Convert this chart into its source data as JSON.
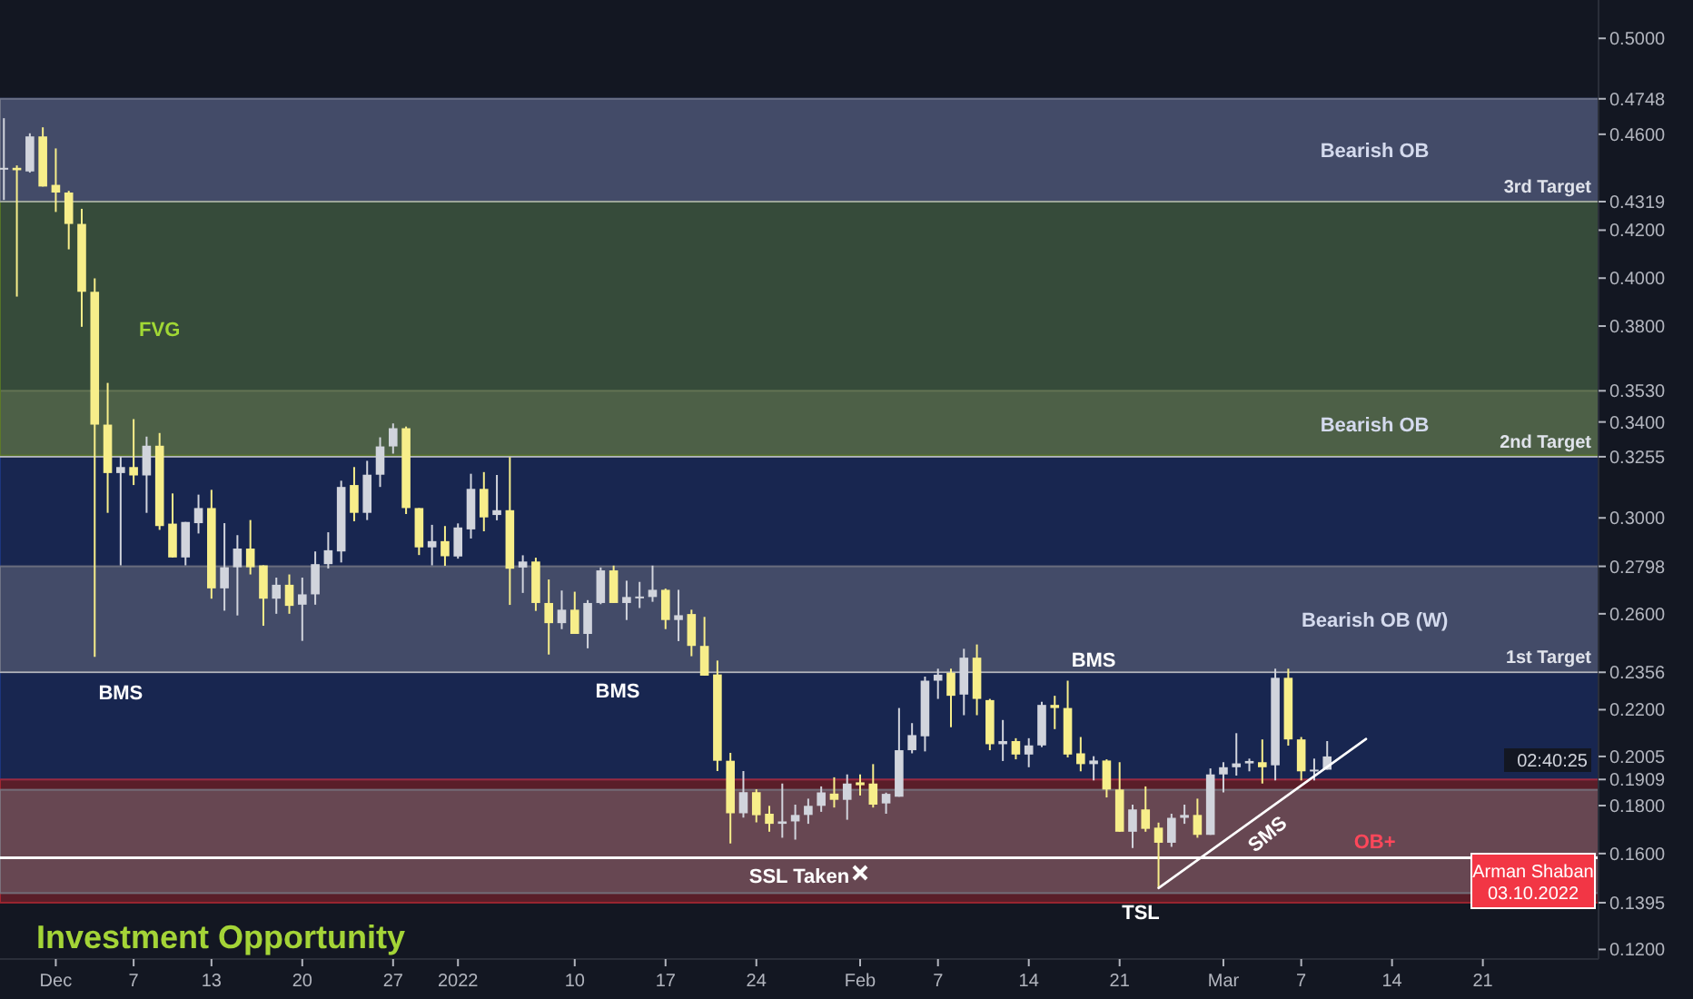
{
  "chart_data": {
    "type": "candlestick",
    "subtitle": "Investment Opportunity",
    "colors": [
      "#d1d4dc",
      "#f7ee8a",
      "#d1d4dc",
      "#f7ee8a",
      "#f7ee8a",
      "#f7ee8a",
      "#f7ee8a",
      "#f7ee8a",
      "#f7ee8a",
      "#d1d4dc",
      "#f7ee8a",
      "#d1d4dc",
      "#f7ee8a",
      "#f7ee8a",
      "#d1d4dc",
      "#d1d4dc",
      "#f7ee8a",
      "#d1d4dc",
      "#d1d4dc",
      "#f7ee8a",
      "#f7ee8a",
      "#d1d4dc",
      "#f7ee8a",
      "#d1d4dc",
      "#d1d4dc",
      "#d1d4dc",
      "#d1d4dc",
      "#f7ee8a",
      "#d1d4dc",
      "#d1d4dc",
      "#d1d4dc",
      "#f7ee8a",
      "#f7ee8a",
      "#d1d4dc",
      "#f7ee8a",
      "#d1d4dc",
      "#d1d4dc",
      "#f7ee8a",
      "#d1d4dc",
      "#f7ee8a",
      "#d1d4dc",
      "#f7ee8a",
      "#f7ee8a",
      "#d1d4dc",
      "#f7ee8a",
      "#d1d4dc",
      "#d1d4dc",
      "#f7ee8a",
      "#d1d4dc",
      "#d1d4dc",
      "#d1d4dc",
      "#f7ee8a",
      "#d1d4dc",
      "#f7ee8a",
      "#f7ee8a",
      "#f7ee8a",
      "#f7ee8a",
      "#d1d4dc",
      "#f7ee8a",
      "#f7ee8a",
      "#d1d4dc",
      "#d1d4dc",
      "#d1d4dc",
      "#d1d4dc",
      "#f7ee8a",
      "#d1d4dc",
      "#f7ee8a",
      "#f7ee8a",
      "#d1d4dc",
      "#d1d4dc",
      "#d1d4dc",
      "#d1d4dc",
      "#d1d4dc",
      "#f7ee8a",
      "#d1d4dc",
      "#f7ee8a",
      "#f7ee8a",
      "#d1d4dc",
      "#f7ee8a",
      "#d1d4dc",
      "#d1d4dc",
      "#f7ee8a",
      "#f7ee8a",
      "#f7ee8a",
      "#d1d4dc",
      "#f7ee8a",
      "#f7ee8a",
      "#d1d4dc",
      "#f7ee8a",
      "#f7ee8a",
      "#d1d4dc",
      "#d1d4dc",
      "#f7ee8a",
      "#d1d4dc",
      "#d1d4dc",
      "#d1d4dc",
      "#d1d4dc",
      "#f7ee8a",
      "#d1d4dc",
      "#f7ee8a",
      "#f7ee8a",
      "#d1d4dc",
      "#d1d4dc"
    ],
    "x": [
      "2021-11-27",
      "2021-11-28",
      "2021-11-29",
      "2021-11-30",
      "2021-12-01",
      "2021-12-02",
      "2021-12-03",
      "2021-12-04",
      "2021-12-05",
      "2021-12-06",
      "2021-12-07",
      "2021-12-08",
      "2021-12-09",
      "2021-12-10",
      "2021-12-11",
      "2021-12-12",
      "2021-12-13",
      "2021-12-14",
      "2021-12-15",
      "2021-12-16",
      "2021-12-17",
      "2021-12-18",
      "2021-12-19",
      "2021-12-20",
      "2021-12-21",
      "2021-12-22",
      "2021-12-23",
      "2021-12-24",
      "2021-12-25",
      "2021-12-26",
      "2021-12-27",
      "2021-12-28",
      "2021-12-29",
      "2021-12-30",
      "2021-12-31",
      "2022-01-01",
      "2022-01-02",
      "2022-01-03",
      "2022-01-04",
      "2022-01-05",
      "2022-01-06",
      "2022-01-07",
      "2022-01-08",
      "2022-01-09",
      "2022-01-10",
      "2022-01-11",
      "2022-01-12",
      "2022-01-13",
      "2022-01-14",
      "2022-01-15",
      "2022-01-16",
      "2022-01-17",
      "2022-01-18",
      "2022-01-19",
      "2022-01-20",
      "2022-01-21",
      "2022-01-22",
      "2022-01-23",
      "2022-01-24",
      "2022-01-25",
      "2022-01-26",
      "2022-01-27",
      "2022-01-28",
      "2022-01-29",
      "2022-01-30",
      "2022-01-31",
      "2022-02-01",
      "2022-02-02",
      "2022-02-03",
      "2022-02-04",
      "2022-02-05",
      "2022-02-06",
      "2022-02-07",
      "2022-02-08",
      "2022-02-09",
      "2022-02-10",
      "2022-02-11",
      "2022-02-12",
      "2022-02-13",
      "2022-02-14",
      "2022-02-15",
      "2022-02-16",
      "2022-02-17",
      "2022-02-18",
      "2022-02-19",
      "2022-02-20",
      "2022-02-21",
      "2022-02-22",
      "2022-02-23",
      "2022-02-24",
      "2022-02-25",
      "2022-02-26",
      "2022-02-27",
      "2022-02-28",
      "2022-03-01",
      "2022-03-02",
      "2022-03-03",
      "2022-03-04",
      "2022-03-05",
      "2022-03-06",
      "2022-03-07",
      "2022-03-08",
      "2022-03-09"
    ],
    "ohlc": [
      [
        0.4457,
        0.4667,
        0.4326,
        0.446
      ],
      [
        0.446,
        0.447,
        0.3923,
        0.445
      ],
      [
        0.4445,
        0.4604,
        0.444,
        0.4591
      ],
      [
        0.4591,
        0.4629,
        0.4382,
        0.4382
      ],
      [
        0.4389,
        0.4541,
        0.4276,
        0.4357
      ],
      [
        0.4357,
        0.4364,
        0.412,
        0.4226
      ],
      [
        0.4226,
        0.4289,
        0.3797,
        0.3943
      ],
      [
        0.3943,
        0.3999,
        0.242,
        0.3389
      ],
      [
        0.3389,
        0.3563,
        0.3021,
        0.3187
      ],
      [
        0.3187,
        0.3255,
        0.2802,
        0.3212
      ],
      [
        0.3212,
        0.3412,
        0.3137,
        0.3177
      ],
      [
        0.3177,
        0.3339,
        0.3021,
        0.3301
      ],
      [
        0.3301,
        0.3354,
        0.295,
        0.2966
      ],
      [
        0.2976,
        0.3102,
        0.2835,
        0.2835
      ],
      [
        0.2835,
        0.2983,
        0.2802,
        0.2983
      ],
      [
        0.2978,
        0.3097,
        0.2935,
        0.3041
      ],
      [
        0.3041,
        0.3117,
        0.2663,
        0.2706
      ],
      [
        0.2706,
        0.2978,
        0.2613,
        0.2794
      ],
      [
        0.2794,
        0.2928,
        0.2593,
        0.2872
      ],
      [
        0.2872,
        0.2991,
        0.2764,
        0.2794
      ],
      [
        0.2802,
        0.2802,
        0.255,
        0.2663
      ],
      [
        0.2663,
        0.2751,
        0.26,
        0.2721
      ],
      [
        0.2721,
        0.2764,
        0.26,
        0.2633
      ],
      [
        0.2638,
        0.2751,
        0.2487,
        0.2681
      ],
      [
        0.2681,
        0.286,
        0.2638,
        0.2807
      ],
      [
        0.2807,
        0.294,
        0.2789,
        0.2865
      ],
      [
        0.286,
        0.3155,
        0.2814,
        0.3129
      ],
      [
        0.3137,
        0.3212,
        0.2986,
        0.3021
      ],
      [
        0.3021,
        0.3238,
        0.2991,
        0.318
      ],
      [
        0.318,
        0.3336,
        0.3129,
        0.3298
      ],
      [
        0.3298,
        0.3394,
        0.3268,
        0.3374
      ],
      [
        0.3374,
        0.3381,
        0.3016,
        0.3041
      ],
      [
        0.3041,
        0.3041,
        0.2845,
        0.2877
      ],
      [
        0.2877,
        0.2971,
        0.2802,
        0.2903
      ],
      [
        0.2903,
        0.2966,
        0.28,
        0.284
      ],
      [
        0.2839,
        0.2977,
        0.283,
        0.296
      ],
      [
        0.2952,
        0.3184,
        0.2914,
        0.3121
      ],
      [
        0.3121,
        0.3191,
        0.2944,
        0.3002
      ],
      [
        0.3012,
        0.3179,
        0.299,
        0.3032
      ],
      [
        0.3032,
        0.3254,
        0.2637,
        0.2788
      ],
      [
        0.2793,
        0.2844,
        0.2687,
        0.2818
      ],
      [
        0.2818,
        0.2834,
        0.2612,
        0.2645
      ],
      [
        0.2645,
        0.2743,
        0.243,
        0.2561
      ],
      [
        0.2561,
        0.2697,
        0.2536,
        0.2617
      ],
      [
        0.2617,
        0.2692,
        0.2516,
        0.2516
      ],
      [
        0.2516,
        0.2657,
        0.2456,
        0.2645
      ],
      [
        0.2645,
        0.2793,
        0.264,
        0.2781
      ],
      [
        0.2781,
        0.2801,
        0.2645,
        0.2645
      ],
      [
        0.2645,
        0.2738,
        0.2574,
        0.267
      ],
      [
        0.267,
        0.2733,
        0.2624,
        0.2672
      ],
      [
        0.267,
        0.2801,
        0.265,
        0.27
      ],
      [
        0.27,
        0.2705,
        0.2536,
        0.2574
      ],
      [
        0.2574,
        0.27,
        0.2486,
        0.2594
      ],
      [
        0.2599,
        0.2617,
        0.2423,
        0.2466
      ],
      [
        0.2466,
        0.2587,
        0.2342,
        0.2342
      ],
      [
        0.2347,
        0.2405,
        0.1944,
        0.1987
      ],
      [
        0.1987,
        0.202,
        0.1642,
        0.1768
      ],
      [
        0.1768,
        0.1944,
        0.175,
        0.1856
      ],
      [
        0.1856,
        0.1868,
        0.173,
        0.176
      ],
      [
        0.1766,
        0.1799,
        0.1691,
        0.1724
      ],
      [
        0.1724,
        0.1892,
        0.1666,
        0.1734
      ],
      [
        0.1734,
        0.1804,
        0.1658,
        0.1761
      ],
      [
        0.1761,
        0.1829,
        0.1724,
        0.1799
      ],
      [
        0.1799,
        0.188,
        0.1774,
        0.1855
      ],
      [
        0.185,
        0.1918,
        0.1792,
        0.1824
      ],
      [
        0.1824,
        0.193,
        0.1741,
        0.1892
      ],
      [
        0.1897,
        0.193,
        0.1842,
        0.1885
      ],
      [
        0.1892,
        0.1973,
        0.1792,
        0.1804
      ],
      [
        0.1809,
        0.1854,
        0.1766,
        0.1849
      ],
      [
        0.1837,
        0.2207,
        0.1837,
        0.2031
      ],
      [
        0.2031,
        0.2144,
        0.2018,
        0.2094
      ],
      [
        0.2089,
        0.2338,
        0.2026,
        0.2321
      ],
      [
        0.2321,
        0.2371,
        0.2245,
        0.2346
      ],
      [
        0.2354,
        0.2371,
        0.2127,
        0.2258
      ],
      [
        0.2263,
        0.2454,
        0.2177,
        0.2417
      ],
      [
        0.2417,
        0.2472,
        0.2177,
        0.2245
      ],
      [
        0.224,
        0.2245,
        0.2031,
        0.2056
      ],
      [
        0.2056,
        0.2157,
        0.1986,
        0.2069
      ],
      [
        0.2069,
        0.2081,
        0.1993,
        0.2013
      ],
      [
        0.2013,
        0.2081,
        0.196,
        0.2051
      ],
      [
        0.2051,
        0.2233,
        0.2044,
        0.222
      ],
      [
        0.222,
        0.2258,
        0.2119,
        0.2207
      ],
      [
        0.2207,
        0.2321,
        0.2001,
        0.2013
      ],
      [
        0.2018,
        0.2086,
        0.1943,
        0.1973
      ],
      [
        0.1973,
        0.2006,
        0.1905,
        0.1988
      ],
      [
        0.1988,
        0.1993,
        0.1834,
        0.1867
      ],
      [
        0.1867,
        0.1981,
        0.1691,
        0.1691
      ],
      [
        0.1691,
        0.1804,
        0.1623,
        0.1784
      ],
      [
        0.1784,
        0.188,
        0.1691,
        0.1703
      ],
      [
        0.1708,
        0.1729,
        0.1456,
        0.1645
      ],
      [
        0.1645,
        0.1766,
        0.1628,
        0.1749
      ],
      [
        0.1749,
        0.1804,
        0.1724,
        0.1761
      ],
      [
        0.1761,
        0.1829,
        0.1666,
        0.1678
      ],
      [
        0.1678,
        0.1955,
        0.1678,
        0.193
      ],
      [
        0.193,
        0.1981,
        0.1855,
        0.196
      ],
      [
        0.196,
        0.2102,
        0.1925,
        0.1976
      ],
      [
        0.1976,
        0.1996,
        0.1943,
        0.1986
      ],
      [
        0.1981,
        0.2076,
        0.1892,
        0.196
      ],
      [
        0.1968,
        0.2371,
        0.1905,
        0.2333
      ],
      [
        0.2333,
        0.2371,
        0.205,
        0.2076
      ],
      [
        0.2076,
        0.2086,
        0.1905,
        0.1943
      ],
      [
        0.1948,
        0.1996,
        0.1905,
        0.195
      ],
      [
        0.195,
        0.2069,
        0.195,
        0.2005
      ]
    ],
    "series": [
      {
        "type": "line",
        "color": "#ffffff",
        "x": [
          "2022-02-24",
          "2022-03-12"
        ],
        "values": [
          0.1456,
          0.2078
        ]
      }
    ],
    "xlim": [
      "2021-11-26T16:48",
      "2022-03-29T22:00"
    ],
    "xticks": [
      {
        "value": "2021-12-01",
        "label": "Dec"
      },
      {
        "value": "2021-12-07",
        "label": "7"
      },
      {
        "value": "2021-12-13",
        "label": "13"
      },
      {
        "value": "2021-12-20",
        "label": "20"
      },
      {
        "value": "2021-12-27",
        "label": "27"
      },
      {
        "value": "2022-01-01",
        "label": "2022"
      },
      {
        "value": "2022-01-10",
        "label": "10"
      },
      {
        "value": "2022-01-17",
        "label": "17"
      },
      {
        "value": "2022-01-24",
        "label": "24"
      },
      {
        "value": "2022-02-01",
        "label": "Feb"
      },
      {
        "value": "2022-02-07",
        "label": "7"
      },
      {
        "value": "2022-02-14",
        "label": "14"
      },
      {
        "value": "2022-02-21",
        "label": "21"
      },
      {
        "value": "2022-03-01",
        "label": "Mar"
      },
      {
        "value": "2022-03-07",
        "label": "7"
      },
      {
        "value": "2022-03-14",
        "label": "14"
      },
      {
        "value": "2022-03-21",
        "label": "21"
      }
    ],
    "ylim": [
      0.116,
      0.516
    ],
    "yticks": [
      {
        "value": 0.12,
        "label": "0.1200"
      },
      {
        "value": 0.1395,
        "label": "0.1395"
      },
      {
        "value": 0.16,
        "label": "0.1600"
      },
      {
        "value": 0.18,
        "label": "0.1800"
      },
      {
        "value": 0.1909,
        "label": "0.1909"
      },
      {
        "value": 0.2005,
        "label": "0.2005"
      },
      {
        "value": 0.22,
        "label": "0.2200"
      },
      {
        "value": 0.2356,
        "label": "0.2356"
      },
      {
        "value": 0.26,
        "label": "0.2600"
      },
      {
        "value": 0.2798,
        "label": "0.2798"
      },
      {
        "value": 0.3,
        "label": "0.3000"
      },
      {
        "value": 0.3255,
        "label": "0.3255"
      },
      {
        "value": 0.34,
        "label": "0.3400"
      },
      {
        "value": 0.353,
        "label": "0.3530"
      },
      {
        "value": 0.38,
        "label": "0.3800"
      },
      {
        "value": 0.4,
        "label": "0.4000"
      },
      {
        "value": 0.42,
        "label": "0.4200"
      },
      {
        "value": 0.4319,
        "label": "0.4319"
      },
      {
        "value": 0.46,
        "label": "0.4600"
      },
      {
        "value": 0.4748,
        "label": "0.4748"
      },
      {
        "value": 0.5,
        "label": "0.5000"
      }
    ],
    "bands": [
      {
        "axis": "y",
        "from": 0.1909,
        "to": 0.4748,
        "color": "#1e3a8a"
      },
      {
        "axis": "y",
        "from": 0.1395,
        "to": 0.1909,
        "color": "#b22833",
        "label": "OB+"
      },
      {
        "axis": "y",
        "from": 0.4319,
        "to": 0.4748,
        "color": "#787b86",
        "label": "Bearish OB"
      },
      {
        "axis": "y",
        "from": 0.3255,
        "to": 0.353,
        "color": "#787b86",
        "label": "Bearish OB"
      },
      {
        "axis": "y",
        "from": 0.2356,
        "to": 0.2798,
        "color": "#787b86",
        "label": "Bearish OB (W)"
      },
      {
        "axis": "y",
        "from": 0.326,
        "to": 0.4319,
        "color": "#5b7a1e",
        "label": "FVG"
      },
      {
        "axis": "y",
        "from": 0.1435,
        "to": 0.1866,
        "color": "#787b86"
      }
    ],
    "ref_lines": [
      {
        "axis": "y",
        "value": 0.4319,
        "label": "3rd Target",
        "color": "#b2b5be"
      },
      {
        "axis": "y",
        "value": 0.3255,
        "label": "2nd Target",
        "color": "#b2b5be"
      },
      {
        "axis": "y",
        "value": 0.2356,
        "label": "1st Target",
        "color": "#b2b5be"
      },
      {
        "axis": "y",
        "value": 0.1582,
        "color": "#ffffff"
      }
    ],
    "annotations": [
      {
        "text": "BMS",
        "x": "2021-12-06",
        "y": 0.2335
      },
      {
        "text": "BMS",
        "x": "2022-02-19",
        "y": 0.2381
      },
      "BMS",
      "SSL Taken",
      "TSL",
      "SMS",
      "02:40:25",
      "Arman Shaban",
      "03.10.2022"
    ]
  }
}
